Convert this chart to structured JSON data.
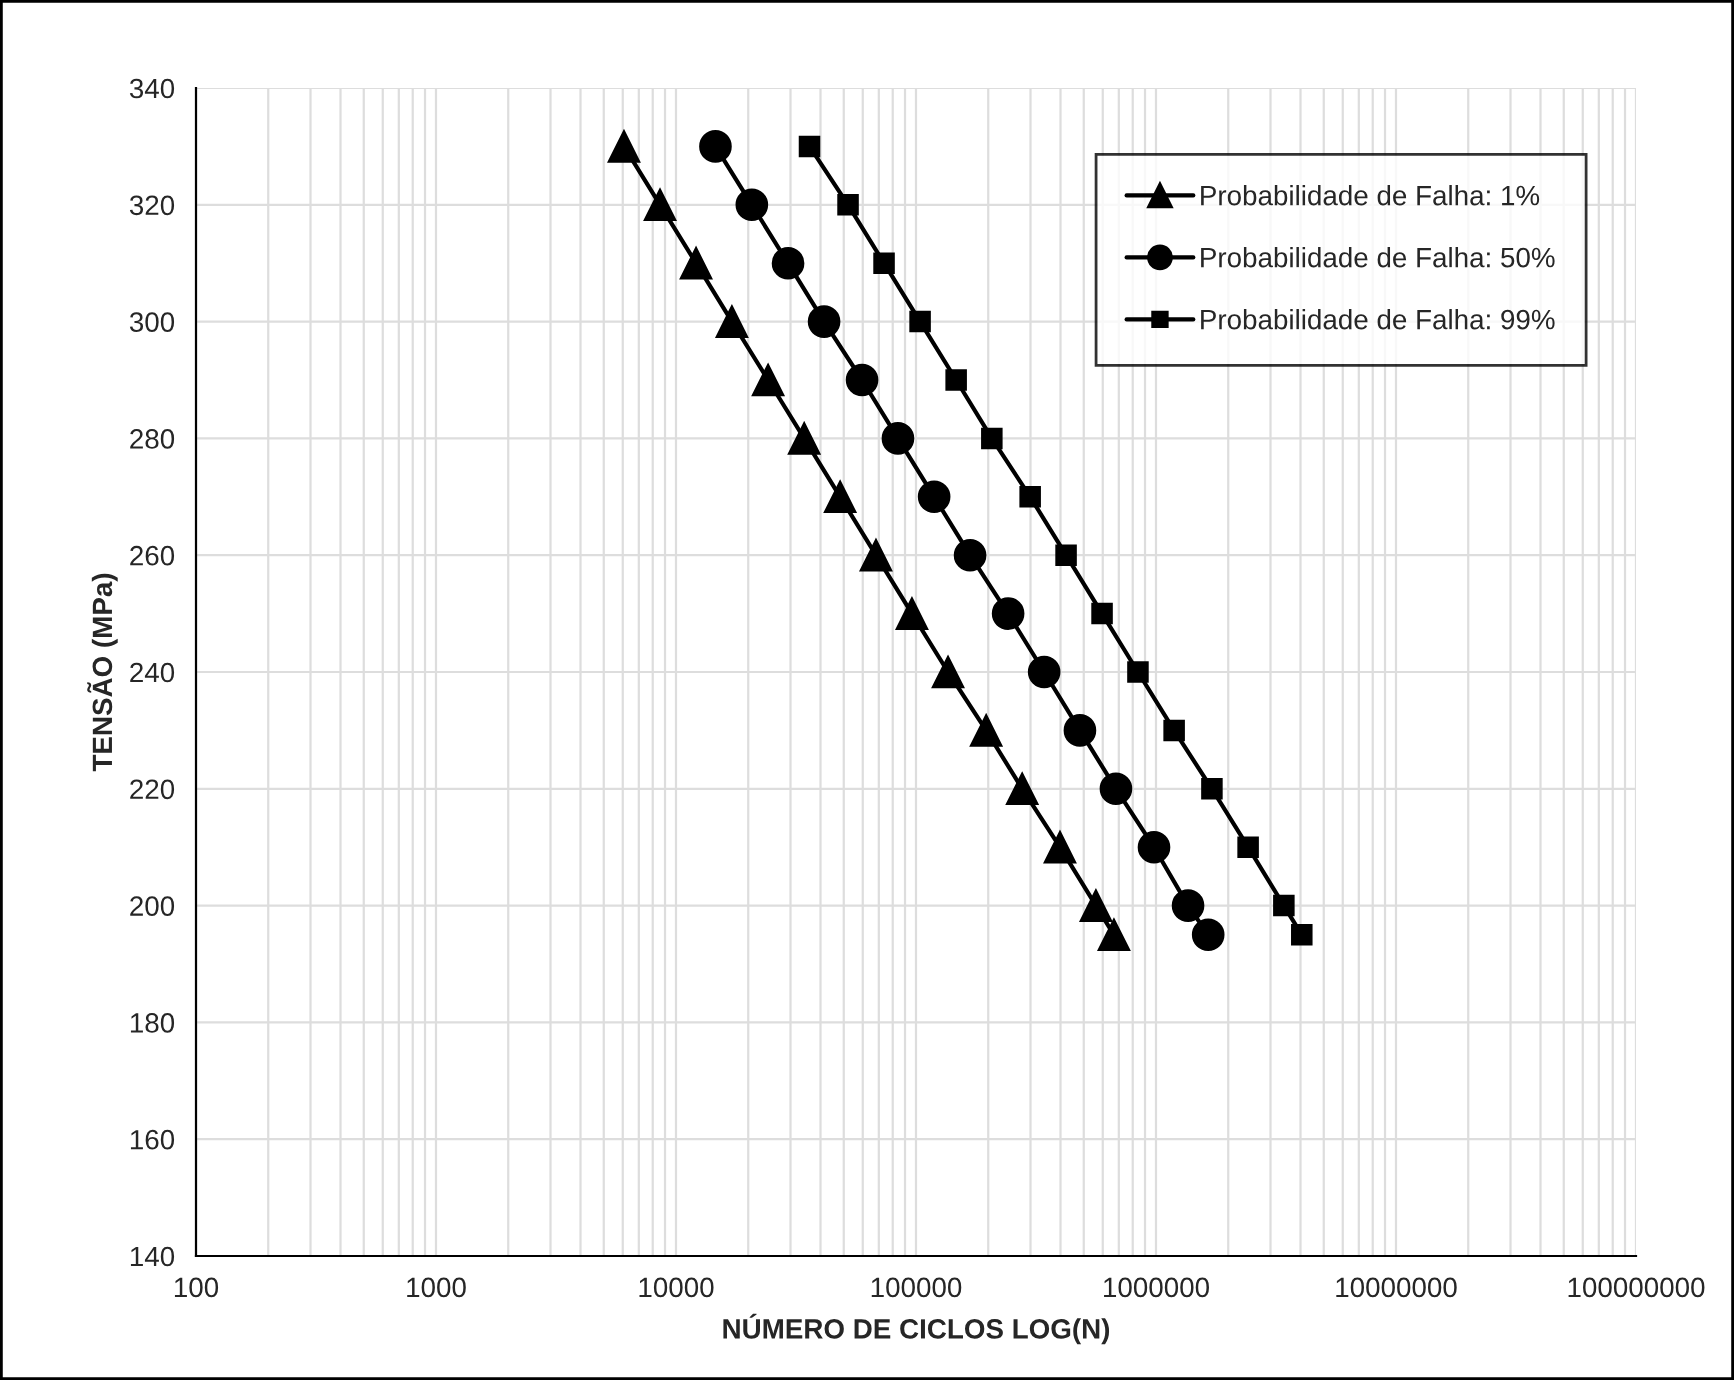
{
  "chart_data": {
    "type": "line",
    "xlabel": "NÚMERO DE CICLOS LOG(N)",
    "ylabel": "TENSÃO (MPa)",
    "log": "x",
    "xlim": [
      100,
      100000000
    ],
    "xticks": [
      {
        "value": 100,
        "label": "100"
      },
      {
        "value": 1000,
        "label": "1000"
      },
      {
        "value": 10000,
        "label": "10000"
      },
      {
        "value": 100000,
        "label": "100000"
      },
      {
        "value": 1000000,
        "label": "1000000"
      },
      {
        "value": 10000000,
        "label": "10000000"
      },
      {
        "value": 100000000,
        "label": "100000000"
      }
    ],
    "ylim": [
      140,
      340
    ],
    "yticks": [
      140,
      160,
      180,
      200,
      220,
      240,
      260,
      280,
      300,
      320,
      340
    ],
    "grid": true,
    "legend": "top right",
    "line_style": "solid",
    "series": [
      {
        "name": "Probabilidade de Falha: 1%",
        "color": "#000000",
        "marker": "triangle",
        "x": [
          6070,
          8580,
          12120,
          17100,
          24200,
          34200,
          48300,
          68100,
          96200,
          136000,
          196000,
          277000,
          398000,
          562000,
          668000
        ],
        "values": [
          330,
          320,
          310,
          300,
          290,
          280,
          270,
          260,
          250,
          240,
          230,
          220,
          210,
          200,
          195
        ]
      },
      {
        "name": "Probabilidade de Falha: 50%",
        "color": "#000000",
        "marker": "circle",
        "x": [
          14600,
          20700,
          29300,
          41400,
          59600,
          84100,
          119000,
          168000,
          242000,
          342000,
          482000,
          681000,
          981000,
          1360000,
          1650000
        ],
        "values": [
          330,
          320,
          310,
          300,
          290,
          280,
          270,
          260,
          250,
          240,
          230,
          220,
          210,
          200,
          195
        ]
      },
      {
        "name": "Probabilidade de Falha: 99%",
        "color": "#000000",
        "marker": "square",
        "x": [
          36000,
          52100,
          73600,
          104000,
          147000,
          207000,
          299000,
          422000,
          596000,
          841000,
          1190000,
          1710000,
          2420000,
          3410000,
          4050000
        ],
        "values": [
          330,
          320,
          310,
          300,
          290,
          280,
          270,
          260,
          250,
          240,
          230,
          220,
          210,
          200,
          195
        ]
      }
    ]
  }
}
